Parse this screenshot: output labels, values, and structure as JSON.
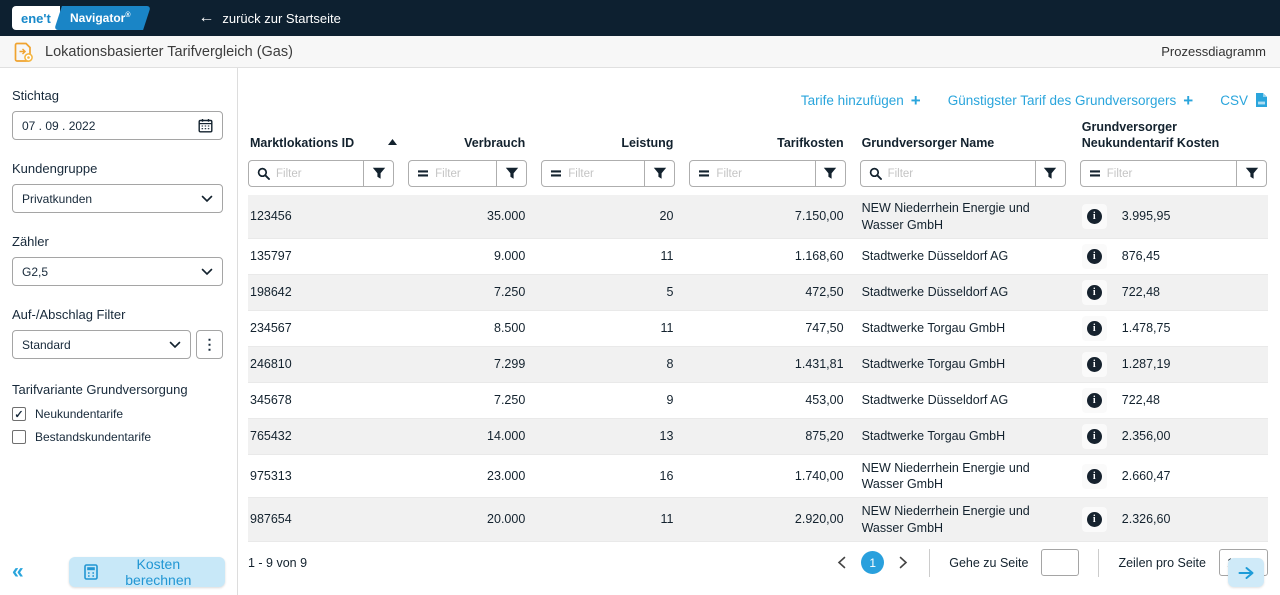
{
  "topbar": {
    "logo_primary": "ene't",
    "logo_secondary": "Navigator",
    "logo_mark": "®",
    "back_label": "zurück zur Startseite"
  },
  "header": {
    "title": "Lokationsbasierter Tarifvergleich (Gas)",
    "right_link": "Prozessdiagramm"
  },
  "sidebar": {
    "stichtag": {
      "label": "Stichtag",
      "value": "07 . 09 . 2022"
    },
    "kundengruppe": {
      "label": "Kundengruppe",
      "value": "Privatkunden"
    },
    "zaehler": {
      "label": "Zähler",
      "value": "G2,5"
    },
    "aufabschlag": {
      "label": "Auf-/Abschlag Filter",
      "value": "Standard"
    },
    "tarifvariante": {
      "label": "Tarifvariante Grundversorgung",
      "options": [
        {
          "label": "Neukundentarife",
          "checked": true
        },
        {
          "label": "Bestandskundentarife",
          "checked": false
        }
      ]
    },
    "calculate_label": "Kosten berechnen",
    "collapse_glyph": "«"
  },
  "actions": {
    "add_tariffs": "Tarife hinzufügen",
    "cheapest_tariff": "Günstigster Tarif des Grundversorgers",
    "csv": "CSV"
  },
  "table": {
    "filter_placeholder": "Filter",
    "columns": [
      {
        "key": "id",
        "label": "Marktlokations ID",
        "align": "left",
        "filter_icon": "search",
        "sorted": "asc"
      },
      {
        "key": "verbrauch",
        "label": "Verbrauch",
        "align": "right",
        "filter_icon": "eq"
      },
      {
        "key": "leistung",
        "label": "Leistung",
        "align": "right",
        "filter_icon": "eq"
      },
      {
        "key": "tarifkosten",
        "label": "Tarifkosten",
        "align": "right",
        "filter_icon": "eq"
      },
      {
        "key": "name",
        "label": "Grundversorger Name",
        "align": "left",
        "filter_icon": "search"
      },
      {
        "key": "kosten",
        "label": "Grundversorger Neukundentarif Kosten",
        "align": "left",
        "filter_icon": "eq"
      }
    ],
    "rows": [
      {
        "id": "123456",
        "verbrauch": "35.000",
        "leistung": "20",
        "tarifkosten": "7.150,00",
        "name": "NEW Niederrhein Energie und Wasser GmbH",
        "kosten": "3.995,95"
      },
      {
        "id": "135797",
        "verbrauch": "9.000",
        "leistung": "11",
        "tarifkosten": "1.168,60",
        "name": "Stadtwerke Düsseldorf AG",
        "kosten": "876,45"
      },
      {
        "id": "198642",
        "verbrauch": "7.250",
        "leistung": "5",
        "tarifkosten": "472,50",
        "name": "Stadtwerke Düsseldorf AG",
        "kosten": "722,48"
      },
      {
        "id": "234567",
        "verbrauch": "8.500",
        "leistung": "11",
        "tarifkosten": "747,50",
        "name": "Stadtwerke Torgau GmbH",
        "kosten": "1.478,75"
      },
      {
        "id": "246810",
        "verbrauch": "7.299",
        "leistung": "8",
        "tarifkosten": "1.431,81",
        "name": "Stadtwerke Torgau GmbH",
        "kosten": "1.287,19"
      },
      {
        "id": "345678",
        "verbrauch": "7.250",
        "leistung": "9",
        "tarifkosten": "453,00",
        "name": "Stadtwerke Düsseldorf AG",
        "kosten": "722,48"
      },
      {
        "id": "765432",
        "verbrauch": "14.000",
        "leistung": "13",
        "tarifkosten": "875,20",
        "name": "Stadtwerke Torgau GmbH",
        "kosten": "2.356,00"
      },
      {
        "id": "975313",
        "verbrauch": "23.000",
        "leistung": "16",
        "tarifkosten": "1.740,00",
        "name": "NEW Niederrhein Energie und Wasser GmbH",
        "kosten": "2.660,47"
      },
      {
        "id": "987654",
        "verbrauch": "20.000",
        "leistung": "11",
        "tarifkosten": "2.920,00",
        "name": "NEW Niederrhein Energie und Wasser GmbH",
        "kosten": "2.326,60"
      }
    ]
  },
  "pagination": {
    "range_text": "1 - 9 von 9",
    "current_page": "1",
    "goto_label": "Gehe zu Seite",
    "rows_per_page_label": "Zeilen pro Seite",
    "rows_per_page_value": "10"
  },
  "colors": {
    "topbar_bg": "#0d2030",
    "accent_blue": "#2aa5dc",
    "button_light_blue": "#c8e8f8",
    "row_stripe": "#f1f1f1",
    "text_dark": "#13222e",
    "doc_icon_orange": "#f0a32f"
  }
}
